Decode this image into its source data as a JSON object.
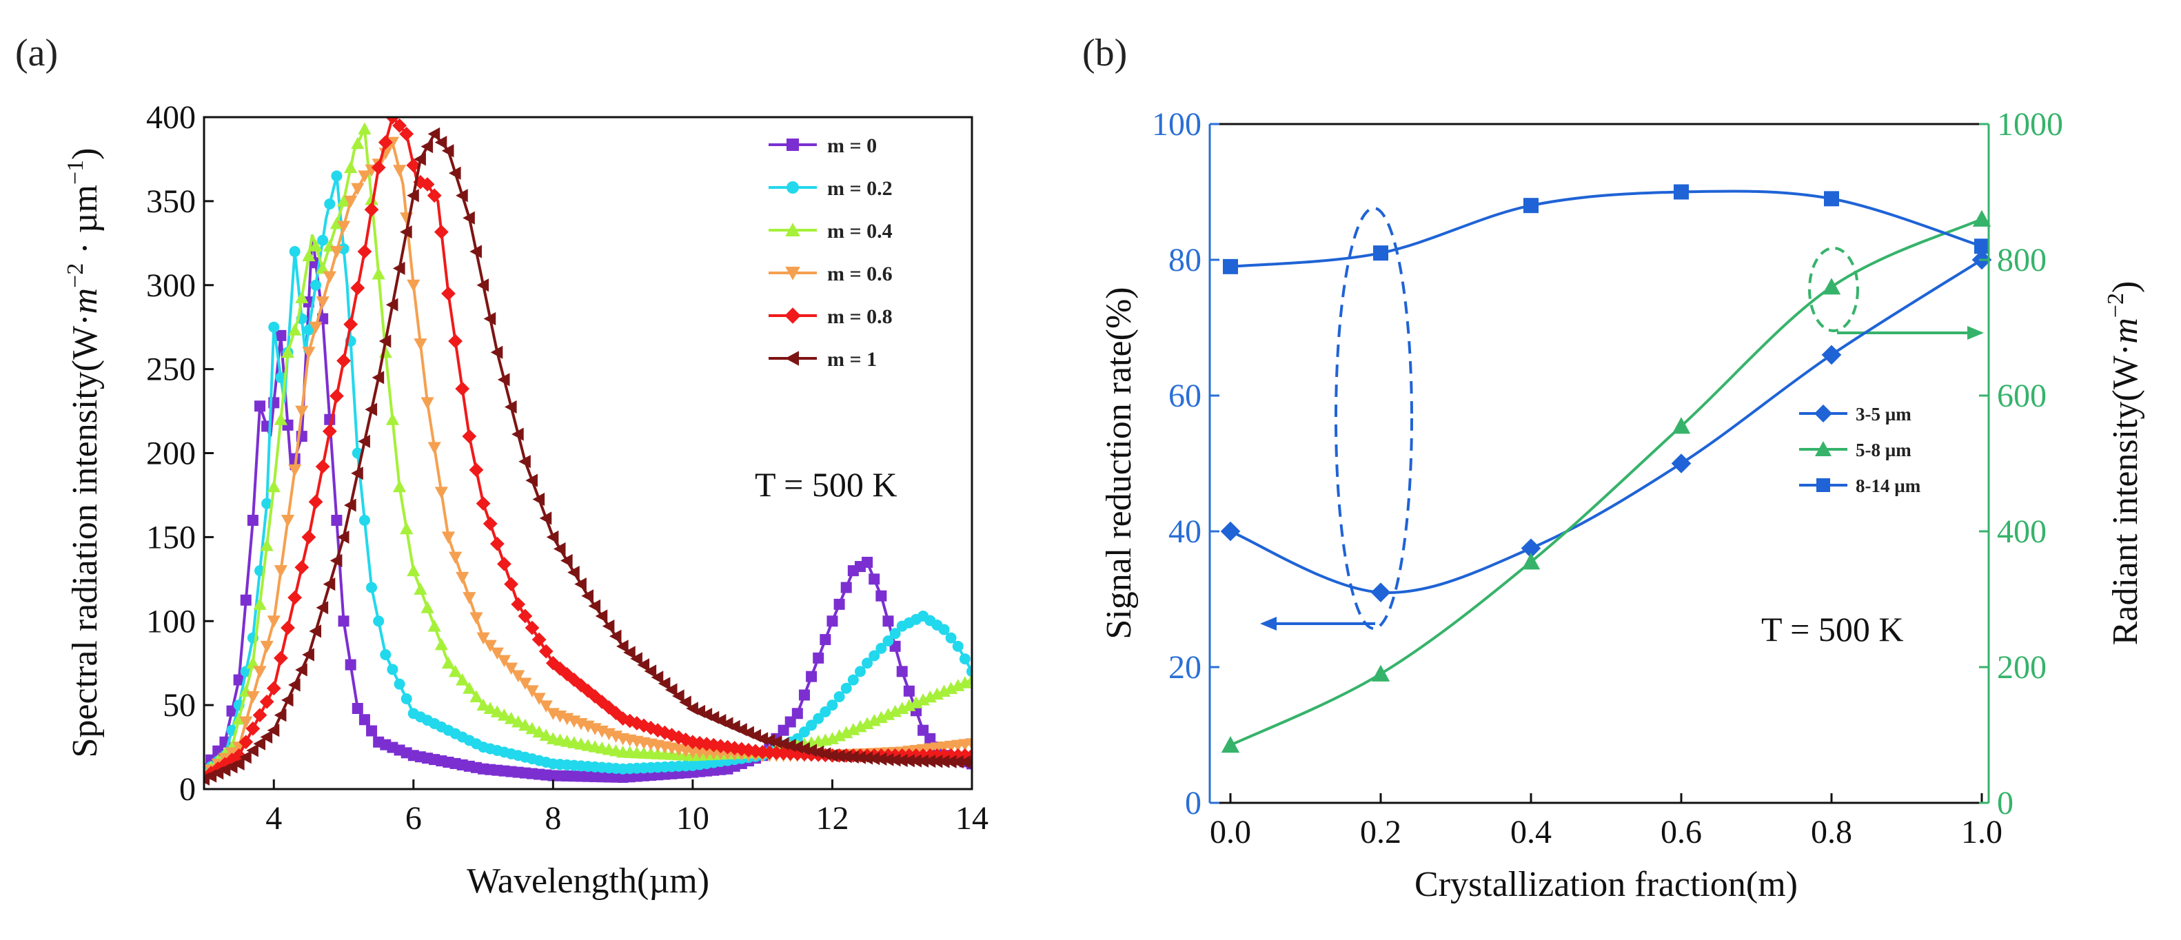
{
  "panels": {
    "a": {
      "label": "(a)"
    },
    "b": {
      "label": "(b)"
    }
  },
  "chart_data": [
    {
      "type": "line",
      "title": "",
      "xlabel": "Wavelength(µm)",
      "ylabel": "Spectral radiation intensity(W·m⁻²·µm⁻¹)",
      "ylabel_main": "Spectral radiation intensity(W·",
      "ylabel_sup1": "−2",
      "ylabel_mid": " · µm",
      "ylabel_sup2": "−1",
      "ylabel_end": ")",
      "xlim": [
        3,
        14
      ],
      "ylim": [
        0,
        400
      ],
      "xticks": [
        "4",
        "6",
        "8",
        "10",
        "12",
        "14"
      ],
      "yticks": [
        "0",
        "50",
        "100",
        "150",
        "200",
        "250",
        "300",
        "350",
        "400"
      ],
      "annotation": "T = 500 K",
      "legend_position": "top-right",
      "series": [
        {
          "name": "m = 0",
          "color": "#7b2fd1",
          "marker": "square",
          "points": [
            [
              3,
              12
            ],
            [
              3.3,
              28
            ],
            [
              3.5,
              65
            ],
            [
              3.7,
              160
            ],
            [
              3.8,
              228
            ],
            [
              3.95,
              210
            ],
            [
              4.1,
              270
            ],
            [
              4.25,
              190
            ],
            [
              4.4,
              210
            ],
            [
              4.55,
              330
            ],
            [
              4.7,
              280
            ],
            [
              4.85,
              190
            ],
            [
              5.0,
              100
            ],
            [
              5.2,
              48
            ],
            [
              5.5,
              28
            ],
            [
              6,
              20
            ],
            [
              7,
              12
            ],
            [
              8,
              8
            ],
            [
              9,
              7
            ],
            [
              10,
              10
            ],
            [
              10.5,
              12
            ],
            [
              11,
              20
            ],
            [
              11.5,
              45
            ],
            [
              12,
              100
            ],
            [
              12.3,
              130
            ],
            [
              12.5,
              135
            ],
            [
              12.7,
              115
            ],
            [
              13,
              70
            ],
            [
              13.3,
              35
            ],
            [
              13.6,
              20
            ],
            [
              14,
              15
            ]
          ]
        },
        {
          "name": "m = 0.2",
          "color": "#22d8ec",
          "marker": "circle",
          "points": [
            [
              3,
              10
            ],
            [
              3.3,
              20
            ],
            [
              3.5,
              50
            ],
            [
              3.7,
              90
            ],
            [
              3.9,
              170
            ],
            [
              4.0,
              275
            ],
            [
              4.15,
              230
            ],
            [
              4.3,
              320
            ],
            [
              4.45,
              260
            ],
            [
              4.6,
              300
            ],
            [
              4.75,
              340
            ],
            [
              4.9,
              365
            ],
            [
              5.05,
              300
            ],
            [
              5.2,
              200
            ],
            [
              5.4,
              120
            ],
            [
              5.6,
              80
            ],
            [
              6,
              45
            ],
            [
              7,
              25
            ],
            [
              8,
              15
            ],
            [
              9,
              12
            ],
            [
              10,
              14
            ],
            [
              11,
              20
            ],
            [
              11.5,
              30
            ],
            [
              12,
              50
            ],
            [
              12.5,
              75
            ],
            [
              13,
              97
            ],
            [
              13.3,
              103
            ],
            [
              13.6,
              95
            ],
            [
              13.8,
              85
            ],
            [
              14,
              70
            ]
          ]
        },
        {
          "name": "m = 0.4",
          "color": "#a6f03a",
          "marker": "triangle",
          "points": [
            [
              3,
              9
            ],
            [
              3.4,
              25
            ],
            [
              3.7,
              75
            ],
            [
              4.0,
              180
            ],
            [
              4.2,
              260
            ],
            [
              4.35,
              280
            ],
            [
              4.55,
              330
            ],
            [
              4.7,
              310
            ],
            [
              4.85,
              330
            ],
            [
              5.0,
              350
            ],
            [
              5.15,
              380
            ],
            [
              5.3,
              393
            ],
            [
              5.45,
              330
            ],
            [
              5.6,
              260
            ],
            [
              5.8,
              180
            ],
            [
              6,
              130
            ],
            [
              6.5,
              75
            ],
            [
              7,
              50
            ],
            [
              8,
              30
            ],
            [
              9,
              22
            ],
            [
              10,
              20
            ],
            [
              11,
              22
            ],
            [
              12,
              30
            ],
            [
              13,
              48
            ],
            [
              14,
              65
            ]
          ]
        },
        {
          "name": "m = 0.6",
          "color": "#f5a050",
          "marker": "triangle-down",
          "points": [
            [
              3,
              8
            ],
            [
              3.5,
              25
            ],
            [
              4.0,
              100
            ],
            [
              4.3,
              190
            ],
            [
              4.5,
              260
            ],
            [
              4.7,
              290
            ],
            [
              4.9,
              320
            ],
            [
              5.1,
              350
            ],
            [
              5.3,
              365
            ],
            [
              5.5,
              372
            ],
            [
              5.7,
              385
            ],
            [
              5.85,
              360
            ],
            [
              6.0,
              300
            ],
            [
              6.2,
              230
            ],
            [
              6.5,
              150
            ],
            [
              7,
              90
            ],
            [
              8,
              45
            ],
            [
              9,
              30
            ],
            [
              10,
              22
            ],
            [
              11,
              20
            ],
            [
              12,
              20
            ],
            [
              13,
              22
            ],
            [
              14,
              27
            ]
          ]
        },
        {
          "name": "m = 0.8",
          "color": "#f01a1a",
          "marker": "diamond",
          "points": [
            [
              3,
              7
            ],
            [
              3.5,
              20
            ],
            [
              4.0,
              60
            ],
            [
              4.5,
              150
            ],
            [
              5.0,
              255
            ],
            [
              5.3,
              320
            ],
            [
              5.5,
              370
            ],
            [
              5.7,
              400
            ],
            [
              5.9,
              390
            ],
            [
              6.05,
              362
            ],
            [
              6.2,
              360
            ],
            [
              6.35,
              350
            ],
            [
              6.5,
              295
            ],
            [
              6.8,
              210
            ],
            [
              7,
              170
            ],
            [
              7.5,
              110
            ],
            [
              8,
              75
            ],
            [
              9,
              42
            ],
            [
              10,
              28
            ],
            [
              11,
              22
            ],
            [
              12,
              20
            ],
            [
              13,
              20
            ],
            [
              14,
              20
            ]
          ]
        },
        {
          "name": "m = 1",
          "color": "#7d1414",
          "marker": "triangle-left",
          "points": [
            [
              3,
              6
            ],
            [
              3.5,
              15
            ],
            [
              4.0,
              35
            ],
            [
              4.5,
              80
            ],
            [
              5.0,
              150
            ],
            [
              5.5,
              245
            ],
            [
              5.8,
              310
            ],
            [
              6.1,
              375
            ],
            [
              6.3,
              390
            ],
            [
              6.5,
              380
            ],
            [
              6.8,
              340
            ],
            [
              7.2,
              260
            ],
            [
              7.6,
              195
            ],
            [
              8,
              150
            ],
            [
              8.5,
              115
            ],
            [
              9,
              85
            ],
            [
              10,
              48
            ],
            [
              11,
              30
            ],
            [
              12,
              20
            ],
            [
              13,
              17
            ],
            [
              14,
              16
            ]
          ]
        }
      ]
    },
    {
      "type": "line",
      "title": "",
      "xlabel": "Crystallization fraction(m)",
      "ylabel_left": "Signal reduction rate(%)",
      "ylabel_right": "Radiant intensity(W·m⁻²)",
      "ylabel_right_main": "Radiant intensity(W·",
      "ylabel_right_sup": "−2",
      "ylabel_right_end": ")",
      "xlim": [
        0,
        1
      ],
      "ylim_left": [
        0,
        100
      ],
      "ylim_right": [
        0,
        1000
      ],
      "xticks": [
        "0.0",
        "0.2",
        "0.4",
        "0.6",
        "0.8",
        "1.0"
      ],
      "yticks_left": [
        "0",
        "20",
        "40",
        "60",
        "80",
        "100"
      ],
      "yticks_right": [
        "0",
        "200",
        "400",
        "600",
        "800",
        "1000"
      ],
      "left_axis_color": "#2a6fd6",
      "right_axis_color": "#36b36a",
      "annotation": "T = 500 K",
      "legend_position": "center-right",
      "series": [
        {
          "name": "3-5 µm",
          "color": "#1f63d6",
          "marker": "diamond",
          "axis": "left",
          "x": [
            0,
            0.2,
            0.4,
            0.6,
            0.8,
            1.0
          ],
          "y": [
            40,
            31,
            37.5,
            50,
            66,
            80
          ]
        },
        {
          "name": "5-8 µm",
          "color": "#36b36a",
          "marker": "triangle",
          "axis": "right",
          "x": [
            0,
            0.2,
            0.4,
            0.6,
            0.8,
            1.0
          ],
          "y": [
            85,
            190,
            355,
            555,
            760,
            860
          ]
        },
        {
          "name": "8-14 µm",
          "color": "#1f63d6",
          "marker": "square",
          "axis": "left",
          "x": [
            0,
            0.2,
            0.4,
            0.6,
            0.8,
            1.0
          ],
          "y": [
            79,
            81,
            88,
            90,
            89,
            82
          ]
        }
      ]
    }
  ]
}
